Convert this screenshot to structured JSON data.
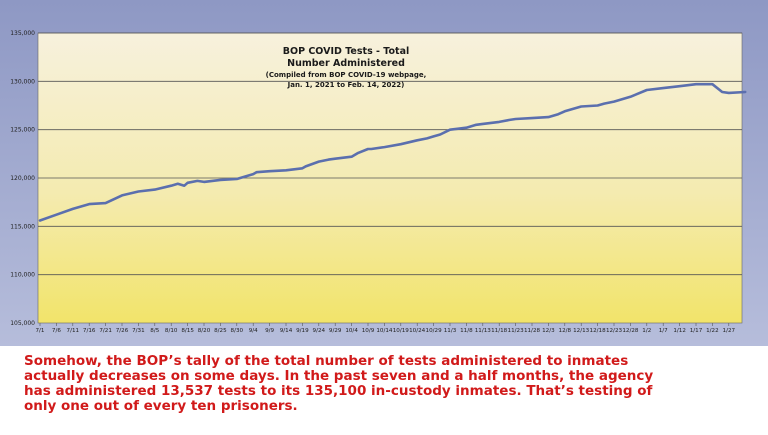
{
  "chart_data": {
    "type": "line",
    "title_lines": [
      "BOP COVID Tests - Total",
      "Number Administered",
      "(Compiled from BOP COVID-19 webpage,",
      "Jan. 1, 2021 to Feb. 14, 2022)"
    ],
    "xlabel": "",
    "ylabel": "",
    "ylim": [
      105000,
      135000
    ],
    "yticks": [
      "135,000",
      "130,000",
      "125,000",
      "120,000",
      "115,000",
      "110,000",
      "105,000"
    ],
    "ytick_values": [
      135000,
      130000,
      125000,
      120000,
      115000,
      110000,
      105000
    ],
    "xticks": [
      "7/1",
      "7/6",
      "7/11",
      "7/16",
      "7/21",
      "7/26",
      "7/31",
      "8/5",
      "8/10",
      "8/15",
      "8/20",
      "8/25",
      "8/30",
      "9/4",
      "9/9",
      "9/14",
      "9/19",
      "9/24",
      "9/29",
      "10/4",
      "10/9",
      "10/14",
      "10/19",
      "10/24",
      "10/29",
      "11/3",
      "11/8",
      "11/13",
      "11/18",
      "11/23",
      "11/28",
      "12/3",
      "12/8",
      "12/13",
      "12/18",
      "12/23",
      "12/28",
      "1/2",
      "1/7",
      "1/12",
      "1/17",
      "1/22",
      "1/27"
    ],
    "grid": true,
    "legend": "none",
    "series": [
      {
        "color": "#5b6fae",
        "x": [
          0,
          5,
          10,
          15,
          20,
          25,
          30,
          35,
          40,
          42,
          44,
          45,
          48,
          50,
          55,
          60,
          65,
          66,
          70,
          75,
          80,
          81,
          85,
          88,
          90,
          95,
          97,
          100,
          101,
          105,
          110,
          115,
          118,
          120,
          122,
          125,
          130,
          133,
          135,
          140,
          143,
          145,
          150,
          155,
          158,
          160,
          165,
          170,
          172,
          175,
          180,
          185,
          190,
          195,
          200,
          205,
          208,
          210,
          215
        ],
        "values": [
          115600,
          116200,
          116800,
          117300,
          117400,
          118200,
          118600,
          118800,
          119200,
          119400,
          119200,
          119500,
          119700,
          119600,
          119800,
          119900,
          120400,
          120600,
          120700,
          120800,
          121000,
          121200,
          121700,
          121900,
          122000,
          122200,
          122600,
          123000,
          123000,
          123200,
          123500,
          123900,
          124100,
          124300,
          124500,
          125000,
          125200,
          125500,
          125600,
          125800,
          126000,
          126100,
          126200,
          126300,
          126600,
          126900,
          127400,
          127500,
          127700,
          127900,
          128400,
          129100,
          129300,
          129500,
          129700,
          129700,
          128900,
          128800,
          128900
        ]
      }
    ]
  },
  "caption_lines": [
    "Somehow, the BOP’s tally of the total number of tests administered to inmates",
    "actually decreases on some days. In the past seven and a half months, the agency",
    "has administered 13,537 tests to its 135,100 in-custody inmates. That’s testing of",
    "only one out of every ten prisoners."
  ],
  "colors": {
    "frame": "#a4acd2",
    "plot_top": "#f7f1dd",
    "plot_bottom": "#f2e66e",
    "line": "#5b6fae",
    "caption": "#d11a1a"
  }
}
